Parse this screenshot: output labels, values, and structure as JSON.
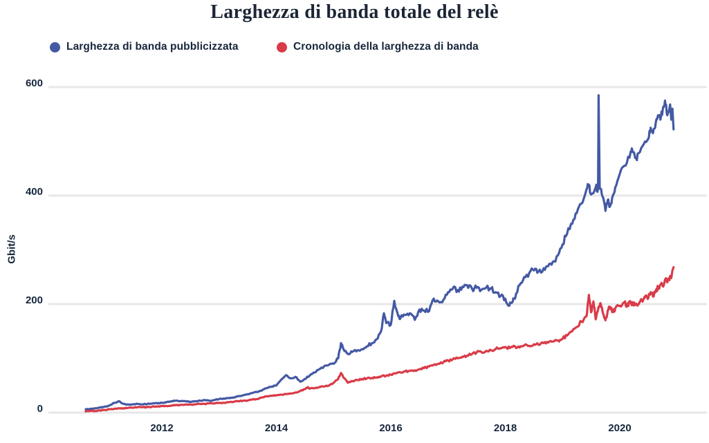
{
  "chart_data": {
    "type": "line",
    "title": "Larghezza di banda totale del relè",
    "ylabel": "Gbit/s",
    "xlabel": "",
    "ylim": [
      0,
      600
    ],
    "x_range": [
      2010.6,
      2021.5
    ],
    "grid": "horizontal",
    "legend_position": "top-left",
    "colors": {
      "advertised": "#4459A4",
      "history": "#D93B48",
      "text": "#16263C",
      "grid": "#E7E7E7",
      "background": "#FFFFFF"
    },
    "yticks": [
      {
        "value": 0,
        "label": "0"
      },
      {
        "value": 200,
        "label": "200"
      },
      {
        "value": 400,
        "label": "400"
      },
      {
        "value": 600,
        "label": "600"
      }
    ],
    "xticks": [
      {
        "value": 2012,
        "label": "2012"
      },
      {
        "value": 2014,
        "label": "2014"
      },
      {
        "value": 2016,
        "label": "2016"
      },
      {
        "value": 2018,
        "label": "2018"
      },
      {
        "value": 2020,
        "label": "2020"
      }
    ],
    "series": [
      {
        "name": "Larghezza di banda pubblicizzata",
        "color": "#4459A4",
        "x": [
          2010.67,
          2010.75,
          2010.83,
          2010.92,
          2011.0,
          2011.08,
          2011.17,
          2011.25,
          2011.33,
          2011.42,
          2011.5,
          2011.58,
          2011.67,
          2011.75,
          2011.83,
          2011.92,
          2012.0,
          2012.08,
          2012.17,
          2012.25,
          2012.33,
          2012.42,
          2012.5,
          2012.58,
          2012.67,
          2012.75,
          2012.83,
          2012.92,
          2013.0,
          2013.08,
          2013.17,
          2013.25,
          2013.33,
          2013.42,
          2013.5,
          2013.58,
          2013.67,
          2013.75,
          2013.83,
          2013.92,
          2014.0,
          2014.08,
          2014.17,
          2014.25,
          2014.33,
          2014.42,
          2014.5,
          2014.58,
          2014.67,
          2014.75,
          2014.83,
          2014.92,
          2015.0,
          2015.08,
          2015.13,
          2015.17,
          2015.25,
          2015.33,
          2015.42,
          2015.5,
          2015.58,
          2015.67,
          2015.75,
          2015.83,
          2015.88,
          2015.92,
          2016.0,
          2016.06,
          2016.13,
          2016.17,
          2016.25,
          2016.33,
          2016.42,
          2016.5,
          2016.58,
          2016.67,
          2016.75,
          2016.83,
          2016.92,
          2017.0,
          2017.08,
          2017.17,
          2017.25,
          2017.33,
          2017.42,
          2017.5,
          2017.58,
          2017.67,
          2017.75,
          2017.83,
          2017.92,
          2018.0,
          2018.07,
          2018.13,
          2018.17,
          2018.25,
          2018.33,
          2018.42,
          2018.5,
          2018.58,
          2018.67,
          2018.75,
          2018.83,
          2018.92,
          2019.0,
          2019.08,
          2019.17,
          2019.25,
          2019.33,
          2019.42,
          2019.46,
          2019.5,
          2019.58,
          2019.62,
          2019.63,
          2019.65,
          2019.7,
          2019.75,
          2019.79,
          2019.83,
          2019.88,
          2019.92,
          2020.0,
          2020.08,
          2020.17,
          2020.21,
          2020.29,
          2020.33,
          2020.42,
          2020.5,
          2020.54,
          2020.58,
          2020.63,
          2020.67,
          2020.71,
          2020.75,
          2020.79,
          2020.83,
          2020.88,
          2020.9,
          2020.92,
          2020.94
        ],
        "values": [
          6,
          7,
          8,
          9,
          11,
          13,
          18,
          21,
          16,
          15,
          15,
          16,
          15,
          16,
          17,
          17,
          18,
          19,
          21,
          22,
          21,
          21,
          20,
          21,
          22,
          23,
          22,
          23,
          25,
          26,
          27,
          28,
          30,
          32,
          34,
          36,
          38,
          41,
          45,
          48,
          50,
          60,
          69,
          63,
          66,
          57,
          62,
          68,
          74,
          80,
          85,
          88,
          90,
          100,
          128,
          118,
          108,
          112,
          115,
          117,
          122,
          128,
          135,
          150,
          183,
          165,
          162,
          206,
          178,
          175,
          180,
          183,
          171,
          190,
          188,
          187,
          210,
          205,
          208,
          222,
          228,
          226,
          232,
          235,
          228,
          230,
          226,
          231,
          228,
          222,
          215,
          210,
          197,
          205,
          210,
          235,
          250,
          258,
          262,
          260,
          266,
          270,
          278,
          290,
          310,
          330,
          348,
          368,
          385,
          412,
          420,
          402,
          415,
          412,
          585,
          413,
          398,
          372,
          392,
          380,
          400,
          415,
          440,
          455,
          470,
          487,
          468,
          478,
          495,
          505,
          525,
          515,
          535,
          548,
          540,
          558,
          575,
          548,
          568,
          540,
          560,
          522
        ]
      },
      {
        "name": "Cronologia della larghezza di banda",
        "color": "#D93B48",
        "x": [
          2010.67,
          2010.75,
          2010.83,
          2010.92,
          2011.0,
          2011.08,
          2011.17,
          2011.25,
          2011.33,
          2011.42,
          2011.5,
          2011.58,
          2011.67,
          2011.75,
          2011.83,
          2011.92,
          2012.0,
          2012.08,
          2012.17,
          2012.25,
          2012.33,
          2012.42,
          2012.5,
          2012.58,
          2012.67,
          2012.75,
          2012.83,
          2012.92,
          2013.0,
          2013.08,
          2013.17,
          2013.25,
          2013.33,
          2013.42,
          2013.5,
          2013.58,
          2013.67,
          2013.75,
          2013.83,
          2013.92,
          2014.0,
          2014.08,
          2014.17,
          2014.25,
          2014.33,
          2014.42,
          2014.5,
          2014.55,
          2014.58,
          2014.67,
          2014.75,
          2014.83,
          2014.92,
          2015.0,
          2015.08,
          2015.13,
          2015.17,
          2015.25,
          2015.33,
          2015.42,
          2015.5,
          2015.58,
          2015.67,
          2015.75,
          2015.83,
          2015.92,
          2016.0,
          2016.08,
          2016.17,
          2016.25,
          2016.33,
          2016.42,
          2016.5,
          2016.58,
          2016.67,
          2016.75,
          2016.83,
          2016.92,
          2017.0,
          2017.08,
          2017.17,
          2017.25,
          2017.33,
          2017.42,
          2017.5,
          2017.58,
          2017.67,
          2017.75,
          2017.83,
          2017.92,
          2018.0,
          2018.08,
          2018.17,
          2018.25,
          2018.33,
          2018.42,
          2018.5,
          2018.58,
          2018.67,
          2018.75,
          2018.83,
          2018.92,
          2019.0,
          2019.08,
          2019.17,
          2019.25,
          2019.33,
          2019.42,
          2019.46,
          2019.5,
          2019.54,
          2019.58,
          2019.63,
          2019.67,
          2019.71,
          2019.75,
          2019.79,
          2019.83,
          2019.88,
          2019.92,
          2020.0,
          2020.08,
          2020.13,
          2020.17,
          2020.21,
          2020.25,
          2020.33,
          2020.42,
          2020.46,
          2020.5,
          2020.54,
          2020.58,
          2020.63,
          2020.67,
          2020.71,
          2020.75,
          2020.79,
          2020.83,
          2020.88,
          2020.9,
          2020.92,
          2020.94
        ],
        "values": [
          2,
          3,
          3,
          4,
          5,
          6,
          7,
          8,
          8,
          9,
          9,
          10,
          10,
          10,
          11,
          11,
          12,
          12,
          13,
          14,
          14,
          15,
          15,
          15,
          16,
          16,
          17,
          17,
          18,
          18,
          19,
          20,
          21,
          22,
          22,
          24,
          25,
          28,
          30,
          31,
          32,
          33,
          34,
          35,
          37,
          40,
          43,
          47,
          44,
          45,
          47,
          48,
          50,
          55,
          62,
          73,
          65,
          55,
          58,
          60,
          62,
          63,
          64,
          65,
          67,
          68,
          70,
          72,
          74,
          76,
          77,
          78,
          80,
          82,
          85,
          88,
          90,
          93,
          96,
          98,
          100,
          103,
          105,
          108,
          111,
          112,
          114,
          115,
          117,
          119,
          121,
          119,
          122,
          120,
          124,
          123,
          126,
          125,
          128,
          129,
          131,
          133,
          136,
          142,
          150,
          158,
          168,
          178,
          217,
          185,
          205,
          172,
          195,
          200,
          182,
          170,
          188,
          195,
          185,
          192,
          197,
          203,
          196,
          205,
          198,
          203,
          200,
          210,
          216,
          212,
          222,
          214,
          225,
          230,
          236,
          233,
          245,
          240,
          252,
          248,
          262,
          268
        ]
      }
    ]
  }
}
